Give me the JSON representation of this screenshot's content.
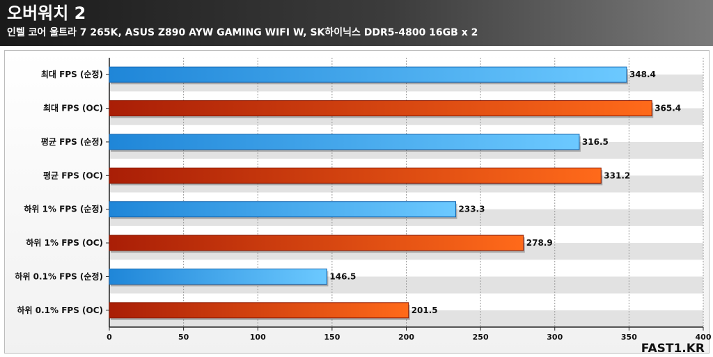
{
  "header": {
    "title": "오버워치 2",
    "subtitle": "인텔 코어 울트라 7 265K, ASUS Z890 AYW GAMING WIFI W, SK하이닉스 DDR5-4800 16GB x 2"
  },
  "brand": "FAST1.KR",
  "colors": {
    "stock": "#2a9be8",
    "oc": "#e0440f"
  },
  "chart_data": {
    "type": "bar",
    "orientation": "horizontal",
    "categories": [
      "최대 FPS (순정)",
      "최대 FPS (OC)",
      "평균 FPS (순정)",
      "평균 FPS (OC)",
      "하위 1% FPS (순정)",
      "하위 1% FPS (OC)",
      "하위 0.1% FPS (순정)",
      "하위 0.1% FPS (OC)"
    ],
    "values": [
      348.4,
      365.4,
      316.5,
      331.2,
      233.3,
      278.9,
      146.5,
      201.5
    ],
    "value_labels": [
      "348.4",
      "365.4",
      "316.5",
      "331.2",
      "233.3",
      "278.9",
      "146.5",
      "201.5"
    ],
    "bar_color_keys": [
      "stock",
      "oc",
      "stock",
      "oc",
      "stock",
      "oc",
      "stock",
      "oc"
    ],
    "xlim": [
      0,
      400
    ],
    "xticks": [
      0,
      50,
      100,
      150,
      200,
      250,
      300,
      350,
      400
    ],
    "xtick_labels": [
      "0",
      "50",
      "100",
      "150",
      "200",
      "250",
      "300",
      "350",
      "400"
    ],
    "title": "오버워치 2",
    "xlabel": "",
    "ylabel": "",
    "grid": true
  }
}
